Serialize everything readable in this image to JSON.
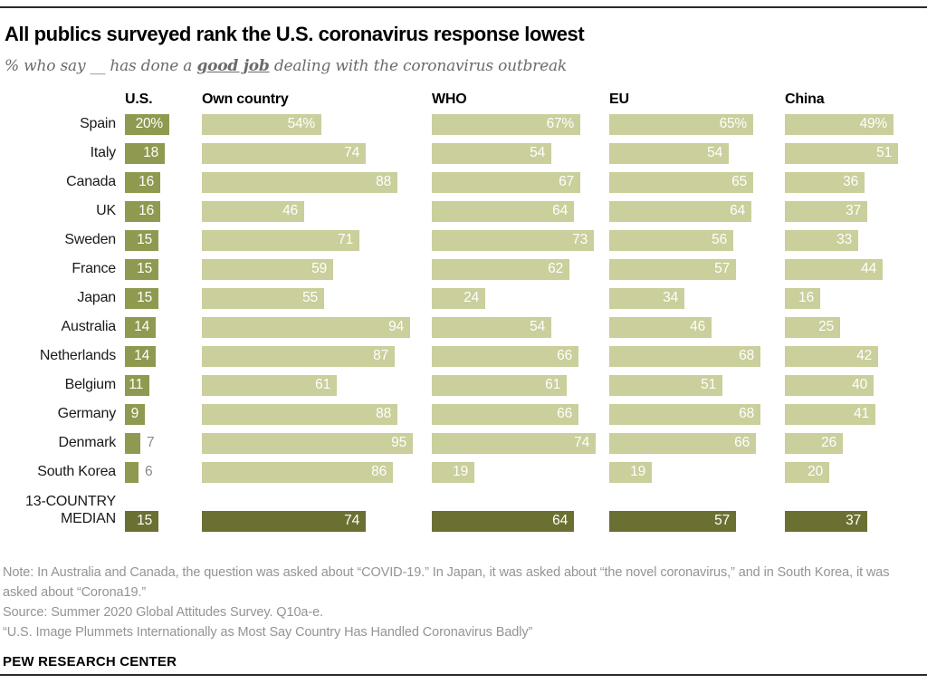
{
  "header": {
    "title": "All publics surveyed rank the U.S. coronavirus response lowest",
    "subtitle_prefix": "% who say __ has done a ",
    "subtitle_emphasis": "good job",
    "subtitle_suffix": " dealing with the coronavirus outbreak"
  },
  "chart_data": {
    "type": "bar",
    "orientation": "horizontal",
    "title": "All publics surveyed rank the U.S. coronavirus response lowest",
    "subtitle": "% who say __ has done a good job dealing with the coronavirus outbreak",
    "unit": "%",
    "xlim": [
      0,
      100
    ],
    "columns": [
      "U.S.",
      "Own country",
      "WHO",
      "EU",
      "China"
    ],
    "rows": [
      {
        "label": "Spain",
        "values": [
          20,
          54,
          67,
          65,
          49
        ],
        "display": [
          "20%",
          "54%",
          "67%",
          "65%",
          "49%"
        ]
      },
      {
        "label": "Italy",
        "values": [
          18,
          74,
          54,
          54,
          51
        ],
        "display": [
          "18",
          "74",
          "54",
          "54",
          "51"
        ]
      },
      {
        "label": "Canada",
        "values": [
          16,
          88,
          67,
          65,
          36
        ],
        "display": [
          "16",
          "88",
          "67",
          "65",
          "36"
        ]
      },
      {
        "label": "UK",
        "values": [
          16,
          46,
          64,
          64,
          37
        ],
        "display": [
          "16",
          "46",
          "64",
          "64",
          "37"
        ]
      },
      {
        "label": "Sweden",
        "values": [
          15,
          71,
          73,
          56,
          33
        ],
        "display": [
          "15",
          "71",
          "73",
          "56",
          "33"
        ]
      },
      {
        "label": "France",
        "values": [
          15,
          59,
          62,
          57,
          44
        ],
        "display": [
          "15",
          "59",
          "62",
          "57",
          "44"
        ]
      },
      {
        "label": "Japan",
        "values": [
          15,
          55,
          24,
          34,
          16
        ],
        "display": [
          "15",
          "55",
          "24",
          "34",
          "16"
        ]
      },
      {
        "label": "Australia",
        "values": [
          14,
          94,
          54,
          46,
          25
        ],
        "display": [
          "14",
          "94",
          "54",
          "46",
          "25"
        ]
      },
      {
        "label": "Netherlands",
        "values": [
          14,
          87,
          66,
          68,
          42
        ],
        "display": [
          "14",
          "87",
          "66",
          "68",
          "42"
        ]
      },
      {
        "label": "Belgium",
        "values": [
          11,
          61,
          61,
          51,
          40
        ],
        "display": [
          "11",
          "61",
          "61",
          "51",
          "40"
        ]
      },
      {
        "label": "Germany",
        "values": [
          9,
          88,
          66,
          68,
          41
        ],
        "display": [
          "9",
          "88",
          "66",
          "68",
          "41"
        ]
      },
      {
        "label": "Denmark",
        "values": [
          7,
          95,
          74,
          66,
          26
        ],
        "display": [
          "7",
          "95",
          "74",
          "66",
          "26"
        ]
      },
      {
        "label": "South Korea",
        "values": [
          6,
          86,
          19,
          19,
          20
        ],
        "display": [
          "6",
          "86",
          "19",
          "19",
          "20"
        ]
      }
    ],
    "median_row": {
      "label": [
        "13-COUNTRY",
        "MEDIAN"
      ],
      "values": [
        15,
        74,
        64,
        57,
        37
      ],
      "display": [
        "15",
        "74",
        "64",
        "57",
        "37"
      ]
    }
  },
  "colors": {
    "us_bar": "#8f9a50",
    "country_bar": "#cacf9c",
    "median_bar": "#6b7032",
    "bar_value_text": "#ffffff",
    "outside_value_text": "#8a8a8a"
  },
  "footer": {
    "note": "Note: In Australia and Canada, the question was asked about “COVID-19.” In Japan, it was asked about “the novel coronavirus,” and in South Korea, it was asked about “Corona19.”",
    "source": "Source: Summer 2020 Global Attitudes Survey. Q10a-e.",
    "quote": "“U.S. Image Plummets Internationally as Most Say Country Has Handled Coronavirus Badly”",
    "brand": "PEW RESEARCH CENTER"
  }
}
